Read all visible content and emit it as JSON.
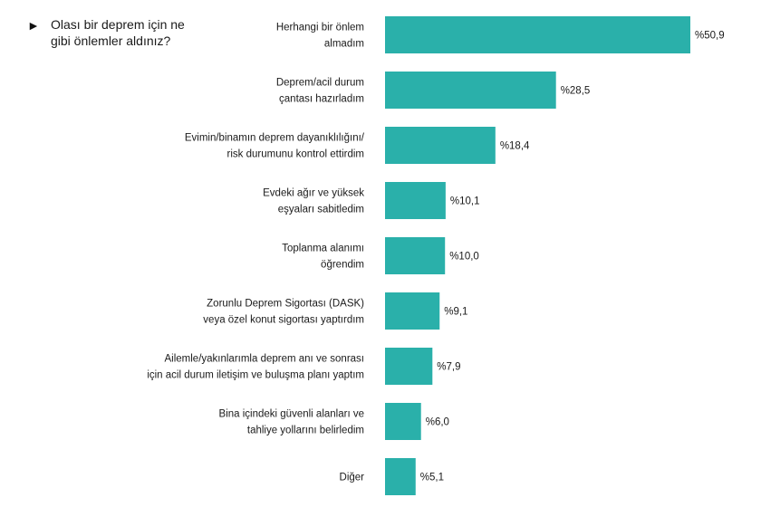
{
  "question": {
    "marker": "►",
    "lines": [
      "Olası bir deprem için ne",
      "gibi önlemler aldınız?"
    ]
  },
  "chart_data": {
    "type": "bar",
    "orientation": "horizontal",
    "bar_color": "#2ab0aa",
    "categories": [
      [
        "Herhangi bir önlem",
        "almadım"
      ],
      [
        "Deprem/acil durum",
        "çantası hazırladım"
      ],
      [
        "Evimin/binamın deprem dayanıklılığını/",
        "risk durumunu kontrol ettirdim"
      ],
      [
        "Evdeki ağır ve yüksek",
        "eşyaları sabitledim"
      ],
      [
        "Toplanma alanımı",
        "öğrendim"
      ],
      [
        "Zorunlu Deprem  Sigortası (DASK)",
        "veya özel konut sigortası yaptırdım"
      ],
      [
        "Ailemle/yakınlarımla deprem anı ve sonrası",
        "için acil durum iletişim ve buluşma planı yaptım"
      ],
      [
        "Bina içindeki güvenli alanları ve",
        "tahliye yollarını belirledim"
      ],
      [
        "Diğer"
      ]
    ],
    "values": [
      50.9,
      28.5,
      18.4,
      10.1,
      10.0,
      9.1,
      7.9,
      6.0,
      5.1
    ],
    "value_labels": [
      "%50,9",
      "%28,5",
      "%18,4",
      "%10,1",
      "%10,0",
      "%9,1",
      "%7,9",
      "%6,0",
      "%5,1"
    ],
    "xlim": [
      0,
      50.9
    ],
    "grid": false,
    "legend": "none"
  }
}
